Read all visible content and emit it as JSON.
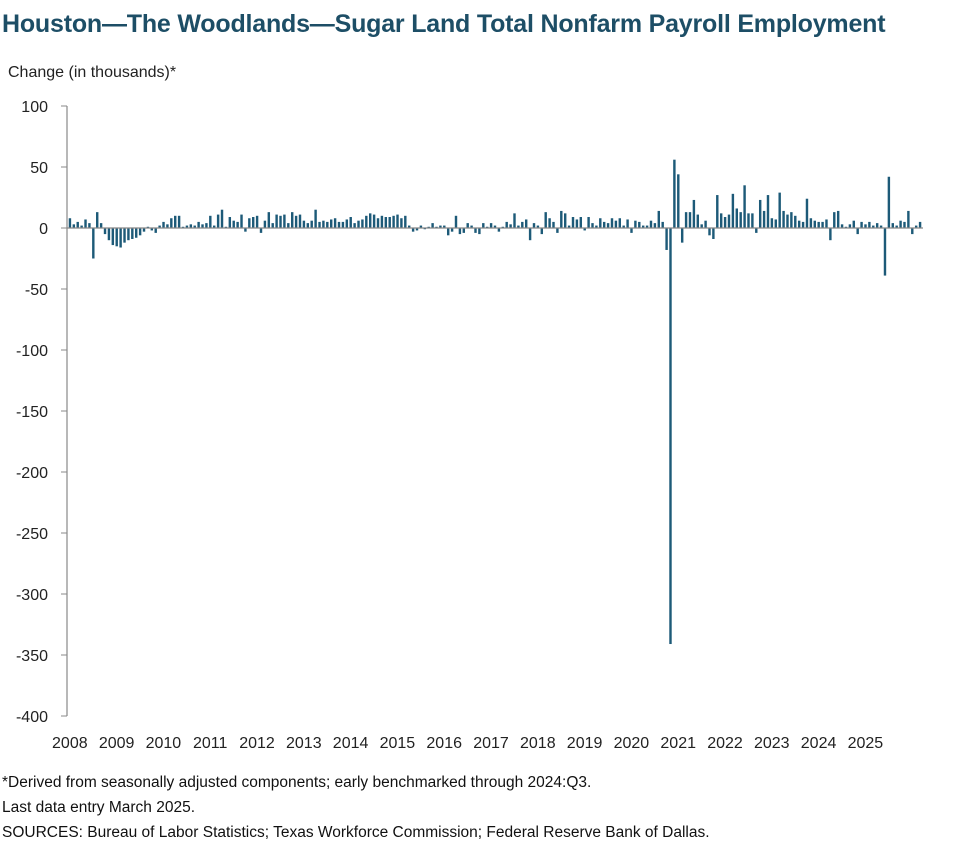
{
  "title": "Houston—The Woodlands—Sugar Land Total Nonfarm Payroll Employment",
  "notes": {
    "line1": "*Derived from seasonally adjusted components; early benchmarked through 2024:Q3.",
    "line2": "Last data entry March 2025.",
    "line3": "SOURCES: Bureau of Labor Statistics; Texas Workforce Commission; Federal Reserve Bank of Dallas."
  },
  "colors": {
    "bar": "#1d5a78",
    "title": "#1d4e66",
    "axis": "#888888"
  },
  "chart_data": {
    "type": "bar",
    "ylabel": "Change (in thousands)*",
    "ylim": [
      -400,
      100
    ],
    "yticks": [
      100,
      50,
      0,
      -50,
      -100,
      -150,
      -200,
      -250,
      -300,
      -350,
      -400
    ],
    "x_tick_labels": [
      "2008",
      "2009",
      "2010",
      "2011",
      "2012",
      "2013",
      "2014",
      "2015",
      "2016",
      "2017",
      "2018",
      "2019",
      "2020",
      "2021",
      "2022",
      "2023",
      "2024",
      "2025"
    ],
    "start": "2008-01",
    "end": "2025-03",
    "values": [
      8,
      3,
      5,
      2,
      7,
      4,
      -25,
      13,
      4,
      -5,
      -10,
      -14,
      -15,
      -16,
      -12,
      -10,
      -9,
      -8,
      -6,
      -3,
      1,
      -2,
      -4,
      2,
      5,
      3,
      8,
      10,
      10,
      1,
      2,
      3,
      2,
      5,
      3,
      4,
      10,
      2,
      11,
      15,
      1,
      9,
      6,
      5,
      11,
      -3,
      8,
      9,
      10,
      -4,
      6,
      13,
      4,
      11,
      10,
      11,
      4,
      13,
      10,
      11,
      6,
      4,
      6,
      15,
      5,
      6,
      5,
      7,
      8,
      5,
      5,
      7,
      9,
      4,
      6,
      7,
      10,
      12,
      11,
      8,
      10,
      9,
      9,
      10,
      11,
      8,
      10,
      2,
      -3,
      -2,
      2,
      -1,
      1,
      4,
      1,
      2,
      2,
      -6,
      -3,
      10,
      -5,
      -4,
      4,
      2,
      -4,
      -5,
      4,
      1,
      4,
      2,
      -3,
      1,
      5,
      3,
      12,
      2,
      5,
      7,
      -10,
      4,
      2,
      -5,
      13,
      8,
      5,
      -4,
      14,
      12,
      2,
      9,
      7,
      9,
      -2,
      9,
      4,
      2,
      8,
      5,
      4,
      8,
      6,
      8,
      2,
      7,
      -4,
      6,
      5,
      2,
      2,
      6,
      4,
      14,
      5,
      -18,
      -341,
      56,
      44,
      -12,
      13,
      13,
      23,
      11,
      3,
      6,
      -6,
      -9,
      27,
      12,
      9,
      11,
      28,
      16,
      13,
      35,
      12,
      12,
      -4,
      23,
      14,
      27,
      8,
      7,
      29,
      14,
      11,
      13,
      10,
      6,
      5,
      24,
      8,
      6,
      5,
      5,
      7,
      -10,
      13,
      14,
      3,
      1,
      3,
      6,
      -5,
      5,
      3,
      5,
      2,
      4,
      2,
      -39,
      42,
      4,
      2,
      6,
      5,
      14,
      -5,
      2,
      5
    ]
  }
}
